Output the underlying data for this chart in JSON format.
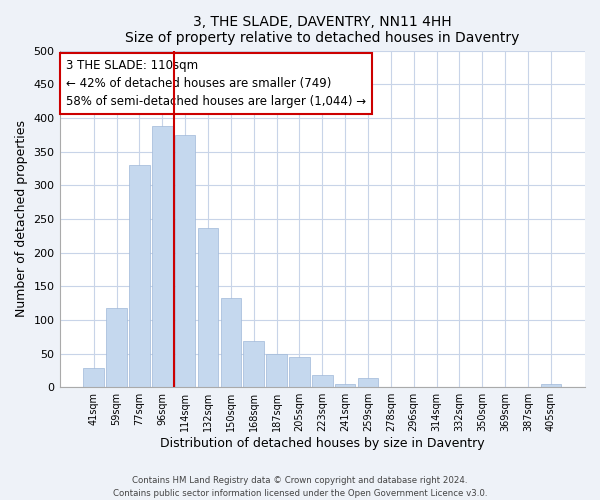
{
  "title": "3, THE SLADE, DAVENTRY, NN11 4HH",
  "subtitle": "Size of property relative to detached houses in Daventry",
  "xlabel": "Distribution of detached houses by size in Daventry",
  "ylabel": "Number of detached properties",
  "bar_labels": [
    "41sqm",
    "59sqm",
    "77sqm",
    "96sqm",
    "114sqm",
    "132sqm",
    "150sqm",
    "168sqm",
    "187sqm",
    "205sqm",
    "223sqm",
    "241sqm",
    "259sqm",
    "278sqm",
    "296sqm",
    "314sqm",
    "332sqm",
    "350sqm",
    "369sqm",
    "387sqm",
    "405sqm"
  ],
  "bar_values": [
    28,
    118,
    330,
    388,
    375,
    237,
    133,
    68,
    50,
    45,
    18,
    5,
    13,
    0,
    0,
    0,
    0,
    0,
    0,
    0,
    5
  ],
  "bar_color": "#c5d8ee",
  "vline_index": 4,
  "vline_color": "#cc0000",
  "annotation_line1": "3 THE SLADE: 110sqm",
  "annotation_line2": "← 42% of detached houses are smaller (749)",
  "annotation_line3": "58% of semi-detached houses are larger (1,044) →",
  "annotation_box_color": "#ffffff",
  "annotation_box_edge": "#cc0000",
  "ylim": [
    0,
    500
  ],
  "yticks": [
    0,
    50,
    100,
    150,
    200,
    250,
    300,
    350,
    400,
    450,
    500
  ],
  "footer_line1": "Contains HM Land Registry data © Crown copyright and database right 2024.",
  "footer_line2": "Contains public sector information licensed under the Open Government Licence v3.0.",
  "background_color": "#eef2f8",
  "plot_bg_color": "#ffffff",
  "grid_color": "#c8d4e8"
}
